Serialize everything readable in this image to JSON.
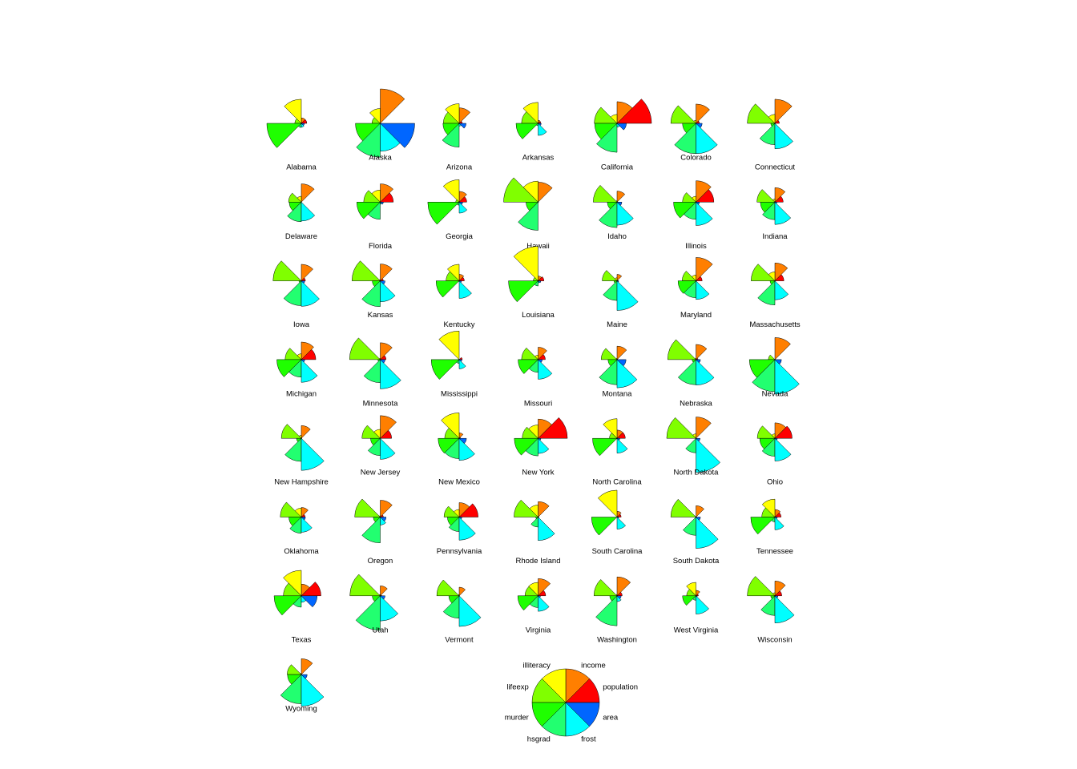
{
  "chart_data": {
    "type": "stars",
    "variables": [
      {
        "name": "population",
        "color": "#ff0000"
      },
      {
        "name": "income",
        "color": "#ff7f00"
      },
      {
        "name": "illiteracy",
        "color": "#ffff00"
      },
      {
        "name": "lifeexp",
        "color": "#80ff00"
      },
      {
        "name": "murder",
        "color": "#1fff00"
      },
      {
        "name": "hsgrad",
        "color": "#22ff70"
      },
      {
        "name": "frost",
        "color": "#00ffff"
      },
      {
        "name": "area",
        "color": "#0066ff"
      }
    ],
    "states": [
      {
        "name": "Alabama",
        "values": [
          0.16,
          0.16,
          0.7,
          0.19,
          1.0,
          0.12,
          0.11,
          0.09
        ]
      },
      {
        "name": "Alaska",
        "values": [
          0.0,
          1.0,
          0.43,
          0.24,
          0.72,
          0.98,
          0.81,
          1.0
        ]
      },
      {
        "name": "Arizona",
        "values": [
          0.09,
          0.45,
          0.57,
          0.46,
          0.47,
          0.69,
          0.08,
          0.2
        ]
      },
      {
        "name": "Arkansas",
        "values": [
          0.08,
          0.09,
          0.61,
          0.48,
          0.64,
          0.07,
          0.35,
          0.09
        ]
      },
      {
        "name": "California",
        "values": [
          1.0,
          0.63,
          0.26,
          0.66,
          0.65,
          0.84,
          0.11,
          0.27
        ]
      },
      {
        "name": "Colorado",
        "values": [
          0.1,
          0.56,
          0.09,
          0.73,
          0.39,
          0.88,
          0.88,
          0.18
        ]
      },
      {
        "name": "Connecticut",
        "values": [
          0.13,
          0.7,
          0.26,
          0.8,
          0.12,
          0.62,
          0.74,
          0.01
        ]
      },
      {
        "name": "Delaware",
        "values": [
          0.01,
          0.53,
          0.17,
          0.37,
          0.35,
          0.57,
          0.55,
          0.0
        ]
      },
      {
        "name": "Florida",
        "values": [
          0.38,
          0.53,
          0.35,
          0.48,
          0.68,
          0.5,
          0.06,
          0.09
        ]
      },
      {
        "name": "Georgia",
        "values": [
          0.22,
          0.31,
          0.65,
          0.1,
          0.91,
          0.09,
          0.32,
          0.1
        ]
      },
      {
        "name": "Hawaii",
        "values": [
          0.02,
          0.58,
          0.61,
          1.0,
          0.35,
          0.82,
          0.0,
          0.01
        ]
      },
      {
        "name": "Idaho",
        "values": [
          0.02,
          0.32,
          0.04,
          0.69,
          0.28,
          0.74,
          0.67,
          0.14
        ]
      },
      {
        "name": "Illinois",
        "values": [
          0.52,
          0.62,
          0.17,
          0.39,
          0.65,
          0.5,
          0.68,
          0.1
        ]
      },
      {
        "name": "Indiana",
        "values": [
          0.24,
          0.42,
          0.09,
          0.52,
          0.42,
          0.51,
          0.65,
          0.06
        ]
      },
      {
        "name": "Iowa",
        "values": [
          0.12,
          0.48,
          0.0,
          0.82,
          0.07,
          0.72,
          0.74,
          0.1
        ]
      },
      {
        "name": "Kansas",
        "values": [
          0.09,
          0.49,
          0.04,
          0.82,
          0.23,
          0.75,
          0.61,
          0.14
        ]
      },
      {
        "name": "Kentucky",
        "values": [
          0.15,
          0.19,
          0.48,
          0.38,
          0.67,
          0.02,
          0.51,
          0.07
        ]
      },
      {
        "name": "Louisiana",
        "values": [
          0.17,
          0.14,
          1.0,
          0.14,
          0.86,
          0.15,
          0.06,
          0.08
        ]
      },
      {
        "name": "Maine",
        "values": [
          0.03,
          0.19,
          0.09,
          0.43,
          0.09,
          0.57,
          0.86,
          0.05
        ]
      },
      {
        "name": "Maryland",
        "values": [
          0.18,
          0.68,
          0.17,
          0.4,
          0.52,
          0.49,
          0.54,
          0.02
        ]
      },
      {
        "name": "Massachusetts",
        "values": [
          0.26,
          0.52,
          0.26,
          0.69,
          0.14,
          0.7,
          0.55,
          0.01
        ]
      },
      {
        "name": "Michigan",
        "values": [
          0.42,
          0.51,
          0.17,
          0.47,
          0.71,
          0.51,
          0.66,
          0.1
        ]
      },
      {
        "name": "Minnesota",
        "values": [
          0.17,
          0.49,
          0.04,
          0.89,
          0.07,
          0.67,
          0.85,
          0.14
        ]
      },
      {
        "name": "Mississippi",
        "values": [
          0.09,
          0.0,
          0.83,
          0.02,
          0.81,
          0.11,
          0.27,
          0.08
        ]
      },
      {
        "name": "Missouri",
        "values": [
          0.21,
          0.36,
          0.13,
          0.48,
          0.58,
          0.37,
          0.57,
          0.12
        ]
      },
      {
        "name": "Montana",
        "values": [
          0.02,
          0.39,
          0.04,
          0.46,
          0.26,
          0.73,
          0.82,
          0.26
        ]
      },
      {
        "name": "Nebraska",
        "values": [
          0.06,
          0.44,
          0.04,
          0.82,
          0.11,
          0.73,
          0.74,
          0.13
        ]
      },
      {
        "name": "Nevada",
        "values": [
          0.01,
          0.64,
          0.0,
          0.19,
          0.74,
          0.93,
          1.0,
          0.19
        ]
      },
      {
        "name": "New Hampshire",
        "values": [
          0.02,
          0.37,
          0.09,
          0.58,
          0.14,
          0.67,
          0.93,
          0.01
        ]
      },
      {
        "name": "New Jersey",
        "values": [
          0.33,
          0.66,
          0.26,
          0.53,
          0.28,
          0.5,
          0.61,
          0.01
        ]
      },
      {
        "name": "New Mexico",
        "values": [
          0.04,
          0.16,
          0.74,
          0.42,
          0.61,
          0.59,
          0.64,
          0.21
        ]
      },
      {
        "name": "New York",
        "values": [
          0.85,
          0.56,
          0.39,
          0.46,
          0.69,
          0.51,
          0.44,
          0.08
        ]
      },
      {
        "name": "North Carolina",
        "values": [
          0.24,
          0.24,
          0.57,
          0.22,
          0.71,
          0.02,
          0.43,
          0.08
        ]
      },
      {
        "name": "North Dakota",
        "values": [
          0.01,
          0.62,
          0.13,
          0.85,
          0.0,
          0.42,
          0.99,
          0.12
        ]
      },
      {
        "name": "Ohio",
        "values": [
          0.5,
          0.45,
          0.13,
          0.51,
          0.44,
          0.52,
          0.66,
          0.07
        ]
      },
      {
        "name": "Oklahoma",
        "values": [
          0.11,
          0.28,
          0.26,
          0.61,
          0.36,
          0.47,
          0.44,
          0.12
        ]
      },
      {
        "name": "Oregon",
        "values": [
          0.09,
          0.49,
          0.04,
          0.74,
          0.2,
          0.75,
          0.23,
          0.17
        ]
      },
      {
        "name": "Pennsylvania",
        "values": [
          0.55,
          0.42,
          0.22,
          0.44,
          0.34,
          0.42,
          0.67,
          0.08
        ]
      },
      {
        "name": "Rhode Island",
        "values": [
          0.03,
          0.45,
          0.35,
          0.7,
          0.07,
          0.29,
          0.68,
          0.0
        ]
      },
      {
        "name": "South Carolina",
        "values": [
          0.12,
          0.17,
          0.78,
          0.0,
          0.74,
          0.0,
          0.35,
          0.05
        ]
      },
      {
        "name": "South Dakota",
        "values": [
          0.02,
          0.33,
          0.0,
          0.73,
          0.02,
          0.53,
          0.91,
          0.13
        ]
      },
      {
        "name": "Tennessee",
        "values": [
          0.18,
          0.22,
          0.52,
          0.38,
          0.7,
          0.14,
          0.37,
          0.07
        ]
      },
      {
        "name": "Texas",
        "values": [
          0.57,
          0.34,
          0.74,
          0.52,
          0.79,
          0.33,
          0.19,
          0.46
        ]
      },
      {
        "name": "Utah",
        "values": [
          0.04,
          0.29,
          0.04,
          0.88,
          0.23,
          1.0,
          0.73,
          0.14
        ]
      },
      {
        "name": "Vermont",
        "values": [
          0.01,
          0.25,
          0.04,
          0.65,
          0.3,
          0.65,
          0.89,
          0.01
        ]
      },
      {
        "name": "Virginia",
        "values": [
          0.22,
          0.5,
          0.39,
          0.38,
          0.59,
          0.34,
          0.45,
          0.07
        ]
      },
      {
        "name": "Washington",
        "values": [
          0.15,
          0.55,
          0.04,
          0.67,
          0.21,
          0.87,
          0.17,
          0.12
        ]
      },
      {
        "name": "West Virginia",
        "values": [
          0.07,
          0.16,
          0.39,
          0.27,
          0.39,
          0.13,
          0.53,
          0.04
        ]
      },
      {
        "name": "Wisconsin",
        "values": [
          0.2,
          0.43,
          0.09,
          0.8,
          0.12,
          0.57,
          0.79,
          0.09
        ]
      },
      {
        "name": "Wyoming",
        "values": [
          0.0,
          0.46,
          0.04,
          0.41,
          0.4,
          0.85,
          0.92,
          0.17
        ]
      }
    ]
  }
}
